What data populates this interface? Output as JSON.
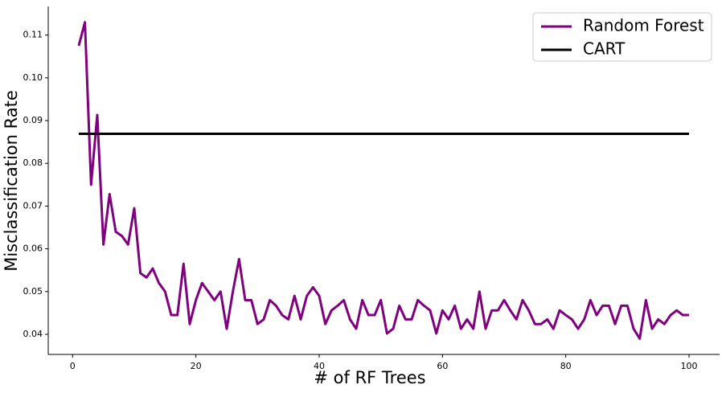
{
  "chart_data": {
    "type": "line",
    "xlabel": "# of RF Trees",
    "ylabel": "Misclassification Rate",
    "xlim": [
      -3.95,
      104.95
    ],
    "ylim": [
      0.0353,
      0.1167
    ],
    "xticks": [
      0,
      20,
      40,
      60,
      80,
      100
    ],
    "yticks": [
      0.04,
      0.05,
      0.06,
      0.07,
      0.08,
      0.09,
      {
        "value": 0.1,
        "label": "0.10"
      },
      0.11
    ],
    "legend": "upper right",
    "series": [
      {
        "name": "Random Forest",
        "color": "#800080",
        "x": [
          1,
          2,
          3,
          4,
          5,
          6,
          7,
          8,
          9,
          10,
          11,
          12,
          13,
          14,
          15,
          16,
          17,
          18,
          19,
          20,
          21,
          22,
          23,
          24,
          25,
          26,
          27,
          28,
          29,
          30,
          31,
          32,
          33,
          34,
          35,
          36,
          37,
          38,
          39,
          40,
          41,
          42,
          43,
          44,
          45,
          46,
          47,
          48,
          49,
          50,
          51,
          52,
          53,
          54,
          55,
          56,
          57,
          58,
          59,
          60,
          61,
          62,
          63,
          64,
          65,
          66,
          67,
          68,
          69,
          70,
          71,
          72,
          73,
          74,
          75,
          76,
          77,
          78,
          79,
          80,
          81,
          82,
          83,
          84,
          85,
          86,
          87,
          88,
          89,
          90,
          91,
          92,
          93,
          94,
          95,
          96,
          97,
          98,
          99,
          100
        ],
        "values": [
          0.1075,
          0.113,
          0.075,
          0.0913,
          0.061,
          0.0728,
          0.064,
          0.063,
          0.061,
          0.0695,
          0.0543,
          0.0533,
          0.0554,
          0.052,
          0.05,
          0.0445,
          0.0445,
          0.0565,
          0.0424,
          0.048,
          0.052,
          0.05,
          0.048,
          0.05,
          0.0413,
          0.05,
          0.0576,
          0.048,
          0.048,
          0.0424,
          0.0435,
          0.048,
          0.0467,
          0.0445,
          0.0435,
          0.049,
          0.0435,
          0.049,
          0.051,
          0.049,
          0.0424,
          0.0456,
          0.0467,
          0.048,
          0.0435,
          0.0413,
          0.048,
          0.0445,
          0.0445,
          0.048,
          0.0402,
          0.0413,
          0.0467,
          0.0435,
          0.0435,
          0.048,
          0.0467,
          0.0456,
          0.0402,
          0.0456,
          0.0435,
          0.0467,
          0.0413,
          0.0435,
          0.0413,
          0.05,
          0.0413,
          0.0456,
          0.0456,
          0.048,
          0.0456,
          0.0435,
          0.048,
          0.0456,
          0.0424,
          0.0424,
          0.0435,
          0.0413,
          0.0456,
          0.0445,
          0.0435,
          0.0413,
          0.0435,
          0.048,
          0.0445,
          0.0467,
          0.0467,
          0.0424,
          0.0467,
          0.0467,
          0.0413,
          0.039,
          0.048,
          0.0413,
          0.0435,
          0.0424,
          0.0445,
          0.0456,
          0.0445,
          0.0445
        ]
      },
      {
        "name": "CART",
        "color": "#000000",
        "x": [
          1,
          100
        ],
        "values": [
          0.0869,
          0.0869
        ]
      }
    ]
  }
}
